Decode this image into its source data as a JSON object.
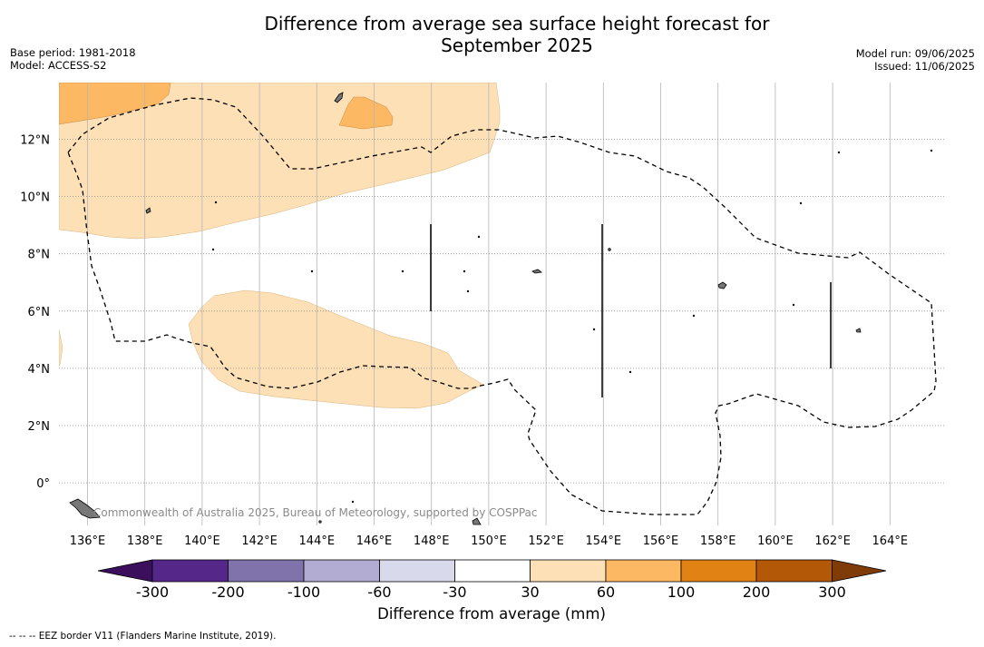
{
  "title_line1": "Difference from average sea surface height forecast for",
  "title_line2": "September 2025",
  "base_period": "Base period: 1981-2018",
  "model": "Model: ACCESS-S2",
  "model_run": "Model run: 09/06/2025",
  "issued": "Issued: 11/06/2025",
  "copyright": "Commonwealth of Australia 2025, Bureau of Meteorology, supported by COSPPac",
  "footnote": "--  --  -- EEZ border V11 (Flanders Marine Institute, 2019).",
  "map": {
    "lon_ticks": [
      "136°E",
      "138°E",
      "140°E",
      "142°E",
      "144°E",
      "146°E",
      "148°E",
      "150°E",
      "152°E",
      "154°E",
      "156°E",
      "158°E",
      "160°E",
      "162°E",
      "164°E"
    ],
    "lat_ticks": [
      "12°N",
      "10°N",
      "8°N",
      "6°N",
      "4°N",
      "2°N",
      "0°"
    ]
  },
  "colorbar": {
    "title": "Difference from average (mm)",
    "labels": [
      "-300",
      "-200",
      "-100",
      "-60",
      "-30",
      "30",
      "60",
      "100",
      "200",
      "300"
    ],
    "colors": [
      "#3b0f5c",
      "#542788",
      "#8073ac",
      "#b2abd2",
      "#d8daeb",
      "#ffffff",
      "#fee0b6",
      "#fdb863",
      "#e08214",
      "#b35806",
      "#7f3b08"
    ]
  },
  "anomaly_colors": {
    "light": "#fee0b6",
    "medium": "#fdb863"
  }
}
